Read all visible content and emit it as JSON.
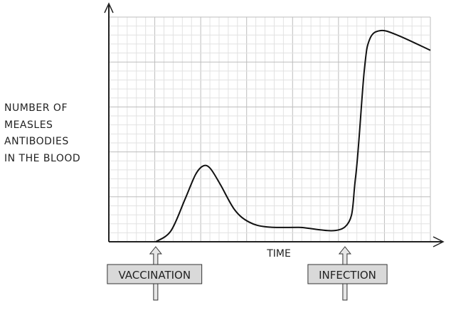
{
  "chart_data": {
    "type": "line",
    "title": "",
    "xlabel": "TIME",
    "ylabel_lines": [
      "NUMBER OF",
      "MEASLES",
      "ANTIBODIES",
      "IN THE BLOOD"
    ],
    "xlim": [
      0,
      7
    ],
    "ylim": [
      0,
      5
    ],
    "grid": true,
    "axis_ticks_labeled": false,
    "series": [
      {
        "x": [
          1.02,
          1.35,
          1.66,
          1.89,
          2.06,
          2.21,
          2.43,
          2.74,
          3.05,
          3.44,
          4.13,
          5.14,
          5.37,
          5.56,
          5.68,
          5.92,
          6.3,
          7.0
        ],
        "y": [
          0,
          0.24,
          0.95,
          1.5,
          1.69,
          1.63,
          1.27,
          0.71,
          0.44,
          0.33,
          0.32,
          0.33,
          1.42,
          3.8,
          4.51,
          4.7,
          4.59,
          4.26
        ]
      }
    ],
    "annotations": [
      {
        "label": "VACCINATION",
        "x": 1.02
      },
      {
        "label": "INFECTION",
        "x": 5.14
      }
    ],
    "colors": {
      "line": "#111111",
      "grid_major": "#bdbdbd",
      "grid_minor": "#e2e2e2",
      "label_box": "#d9d9d9"
    }
  }
}
